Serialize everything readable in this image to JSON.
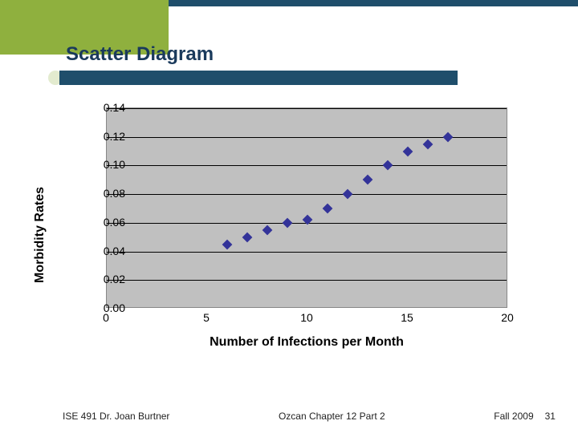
{
  "theme": {
    "top_bar_color": "#1f4e6b",
    "green_block_color": "#8fb03e",
    "title_underline_color": "#1f4e6b",
    "title_dot_color": "#8fb03e",
    "plot_background": "#c0c0c0",
    "gridline_color": "#000000",
    "tick_font_color": "#000000",
    "axis_label_color": "#000000"
  },
  "title": {
    "text": "Scatter Diagram",
    "fontsize": 24,
    "color": "#1a3a5c"
  },
  "chart": {
    "type": "scatter",
    "xlabel": "Number of Infections per Month",
    "ylabel": "Morbidity Rates",
    "label_fontsize": 16,
    "tick_fontsize": 14,
    "xlim": [
      0,
      20
    ],
    "ylim": [
      0.0,
      0.14
    ],
    "xticks": [
      0,
      5,
      10,
      15,
      20
    ],
    "yticks": [
      "0.00",
      "0.02",
      "0.04",
      "0.06",
      "0.08",
      "0.10",
      "0.12",
      "0.14"
    ],
    "ytick_values": [
      0.0,
      0.02,
      0.04,
      0.06,
      0.08,
      0.1,
      0.12,
      0.14
    ],
    "marker": {
      "shape": "diamond",
      "size": 9,
      "color": "#333399"
    },
    "points": [
      {
        "x": 6,
        "y": 0.045
      },
      {
        "x": 7,
        "y": 0.05
      },
      {
        "x": 8,
        "y": 0.055
      },
      {
        "x": 9,
        "y": 0.06
      },
      {
        "x": 10,
        "y": 0.062
      },
      {
        "x": 11,
        "y": 0.07
      },
      {
        "x": 12,
        "y": 0.08
      },
      {
        "x": 13,
        "y": 0.09
      },
      {
        "x": 14,
        "y": 0.1
      },
      {
        "x": 15,
        "y": 0.11
      },
      {
        "x": 16,
        "y": 0.115
      },
      {
        "x": 17,
        "y": 0.12
      }
    ]
  },
  "footer": {
    "left": "ISE 491  Dr. Joan Burtner",
    "center": "Ozcan Chapter 12  Part 2",
    "right_text": "Fall 2009",
    "page": "31",
    "fontsize": 12
  }
}
